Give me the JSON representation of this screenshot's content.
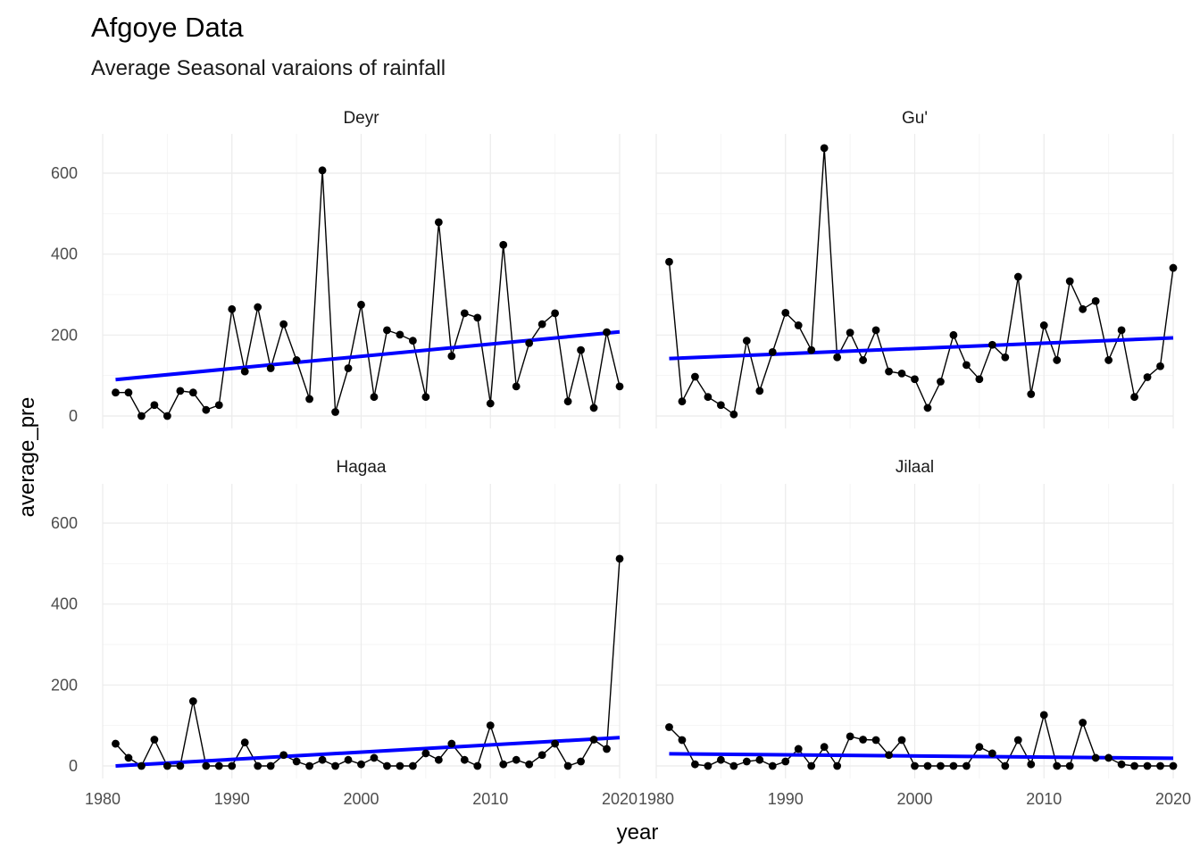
{
  "chart_data": {
    "type": "line",
    "title": "Afgoye Data",
    "subtitle": "Average Seasonal varaions of rainfall",
    "xlabel": "year",
    "ylabel": "average_pre",
    "xlim": [
      1980,
      2020
    ],
    "ylim": [
      0,
      660
    ],
    "xticks": [
      1980,
      1990,
      2000,
      2010,
      2020
    ],
    "yticks": [
      0,
      200,
      400,
      600
    ],
    "grid": true,
    "trend_color": "#0000ff",
    "point_color": "#000000",
    "years": [
      1981,
      1982,
      1983,
      1984,
      1985,
      1986,
      1987,
      1988,
      1989,
      1990,
      1991,
      1992,
      1993,
      1994,
      1995,
      1996,
      1997,
      1998,
      1999,
      2000,
      2001,
      2002,
      2003,
      2004,
      2005,
      2006,
      2007,
      2008,
      2009,
      2010,
      2011,
      2012,
      2013,
      2014,
      2015,
      2016,
      2017,
      2018,
      2019,
      2020
    ],
    "panels": [
      {
        "name": "Deyr",
        "values": [
          58,
          58,
          0,
          27,
          0,
          62,
          58,
          15,
          27,
          264,
          110,
          269,
          118,
          227,
          138,
          42,
          607,
          10,
          118,
          275,
          47,
          212,
          201,
          186,
          47,
          479,
          148,
          254,
          243,
          31,
          423,
          73,
          180,
          227,
          254,
          36,
          163,
          20,
          207,
          73
        ],
        "trend": [
          90,
          208
        ]
      },
      {
        "name": "Gu'",
        "values": [
          381,
          36,
          97,
          47,
          27,
          4,
          186,
          62,
          158,
          255,
          224,
          163,
          662,
          145,
          206,
          138,
          212,
          110,
          105,
          91,
          20,
          85,
          200,
          126,
          91,
          176,
          145,
          344,
          54,
          224,
          138,
          333,
          264,
          284,
          138,
          212,
          47,
          96,
          123,
          366
        ],
        "trend": [
          142,
          193
        ]
      },
      {
        "name": "Hagaa",
        "values": [
          55,
          20,
          0,
          65,
          0,
          0,
          160,
          0,
          0,
          0,
          58,
          0,
          0,
          27,
          11,
          0,
          15,
          0,
          15,
          4,
          20,
          0,
          0,
          0,
          31,
          15,
          55,
          15,
          0,
          100,
          4,
          15,
          4,
          27,
          55,
          0,
          11,
          65,
          42,
          512
        ],
        "trend": [
          0,
          70
        ]
      },
      {
        "name": "Jilaal",
        "values": [
          96,
          64,
          4,
          0,
          15,
          0,
          11,
          15,
          0,
          11,
          42,
          0,
          47,
          0,
          73,
          65,
          64,
          27,
          64,
          0,
          0,
          0,
          0,
          0,
          47,
          31,
          0,
          64,
          4,
          126,
          0,
          0,
          107,
          20,
          20,
          4,
          0,
          0,
          0,
          0
        ],
        "trend": [
          30,
          19
        ]
      }
    ]
  }
}
